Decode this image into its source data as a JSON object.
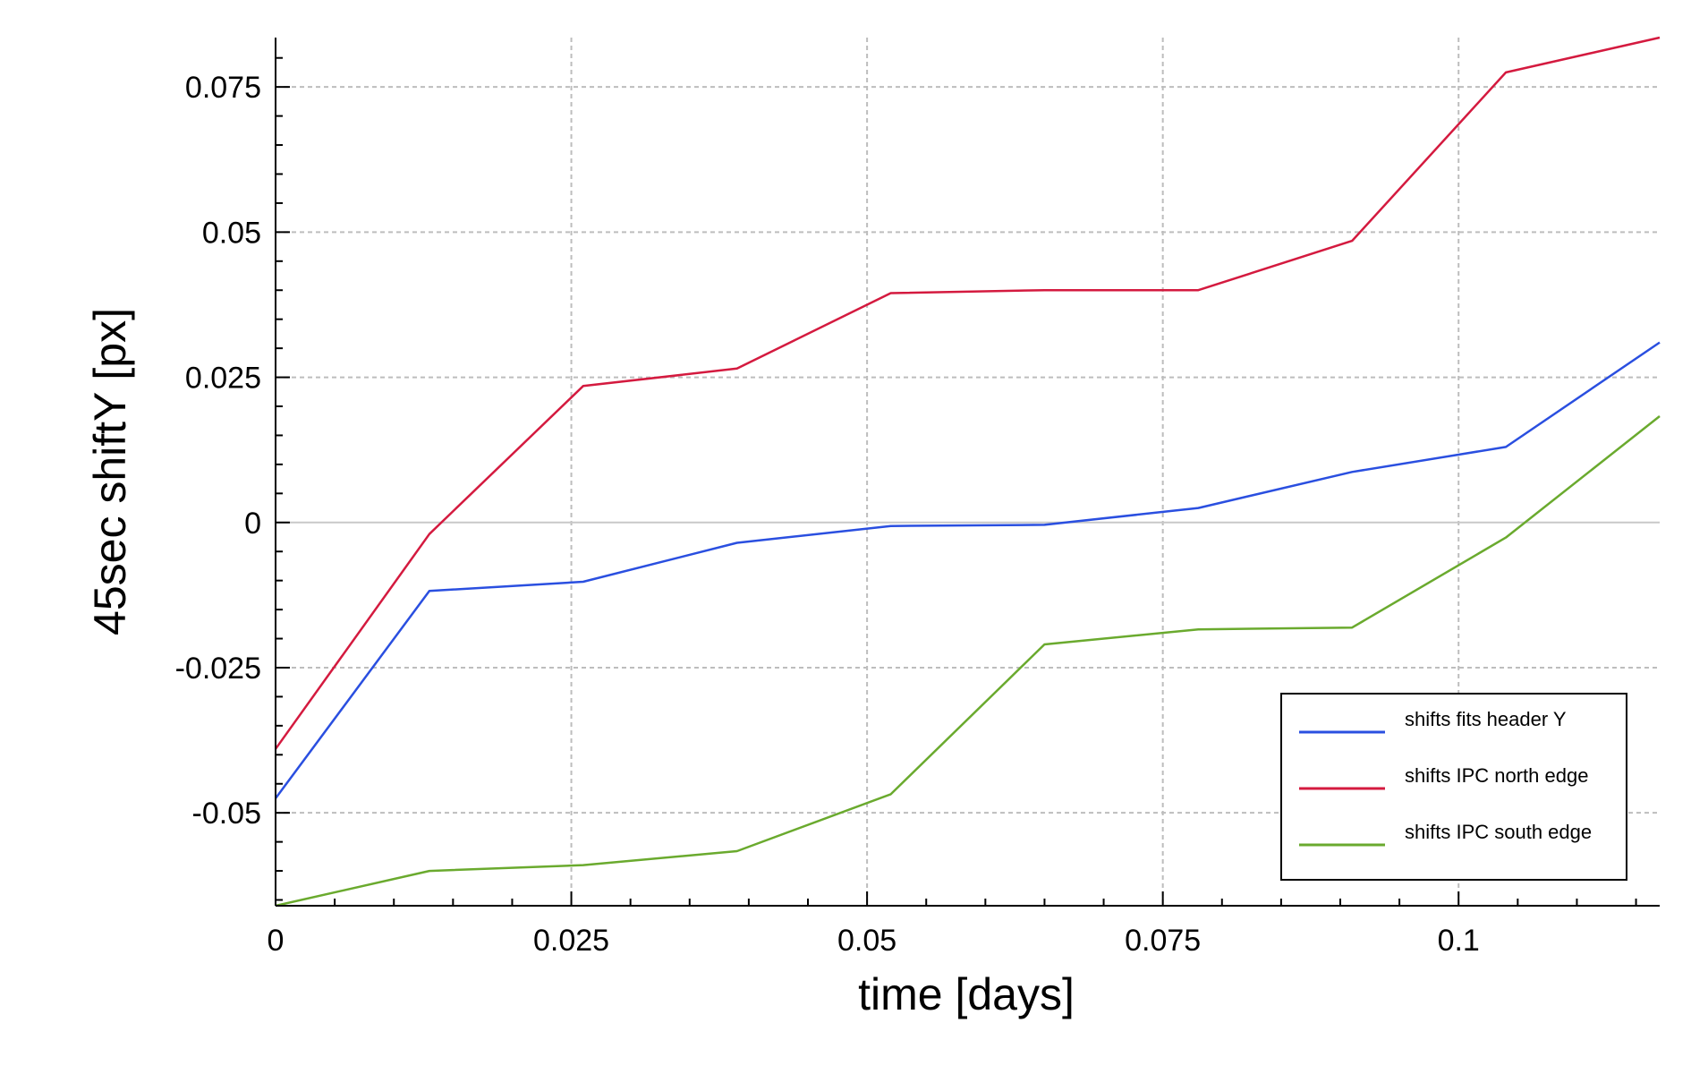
{
  "chart_data": {
    "type": "line",
    "xlabel": "time [days]",
    "ylabel": "45sec shiftY [px]",
    "xlim": [
      0,
      0.117
    ],
    "ylim": [
      -0.066,
      0.0835
    ],
    "x_ticks": [
      0,
      0.025,
      0.05,
      0.075,
      0.1
    ],
    "x_tick_labels": [
      "0",
      "0.025",
      "0.05",
      "0.075",
      "0.1"
    ],
    "y_ticks": [
      -0.05,
      -0.025,
      0,
      0.025,
      0.05,
      0.075
    ],
    "y_tick_labels": [
      "-0.05",
      "-0.025",
      "0",
      "0.025",
      "0.05",
      "0.075"
    ],
    "grid": true,
    "legend_position": "bottom-right",
    "x": [
      0,
      0.013,
      0.026,
      0.039,
      0.052,
      0.065,
      0.078,
      0.091,
      0.104,
      0.117
    ],
    "series": [
      {
        "name": "shifts fits header Y",
        "color": "#2a4fe0",
        "values": [
          -0.0475,
          -0.0118,
          -0.0102,
          -0.0035,
          -0.0006,
          -0.0004,
          0.0025,
          0.0087,
          0.013,
          0.031
        ]
      },
      {
        "name": "shifts IPC north edge",
        "color": "#d41a3f",
        "values": [
          -0.039,
          -0.002,
          0.0235,
          0.0265,
          0.0395,
          0.04,
          0.04,
          0.0485,
          0.0775,
          0.0835
        ]
      },
      {
        "name": "shifts IPC south edge",
        "color": "#6aaa2e",
        "values": [
          -0.066,
          -0.06,
          -0.059,
          -0.0566,
          -0.0468,
          -0.021,
          -0.0184,
          -0.0181,
          -0.0026,
          0.0183
        ]
      }
    ]
  }
}
